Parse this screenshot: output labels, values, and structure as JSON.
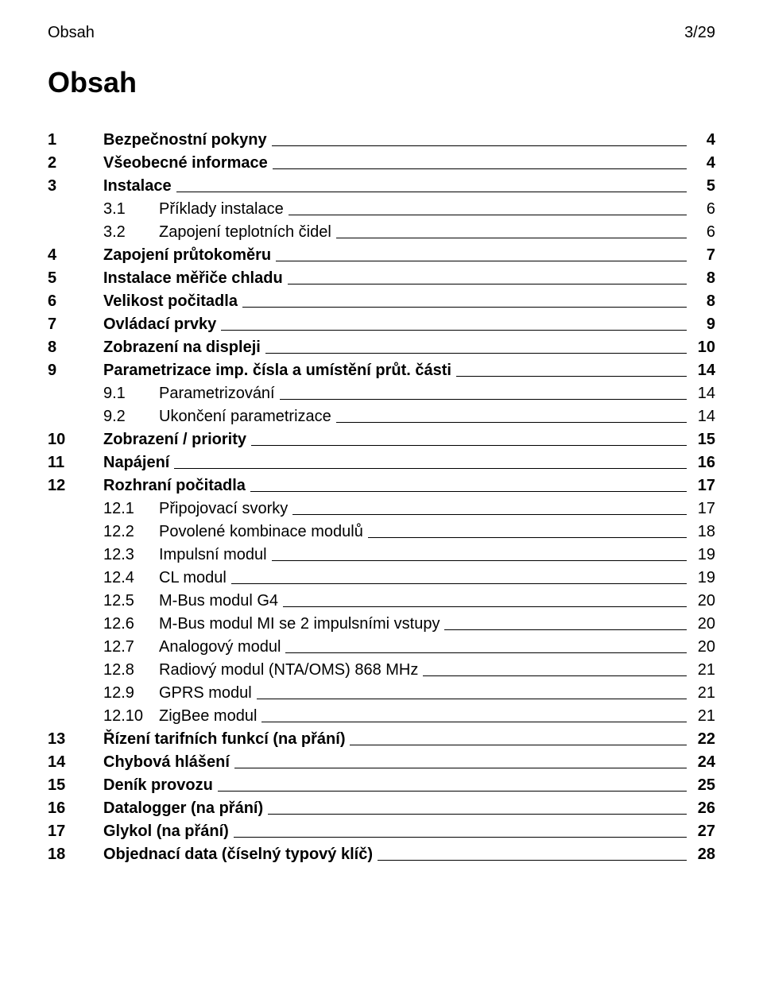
{
  "header": {
    "left": "Obsah",
    "right": "3/29"
  },
  "title": "Obsah",
  "toc": [
    {
      "num": "1",
      "label": "Bezpečnostní pokyny",
      "page": "4",
      "level": 0,
      "bold": true
    },
    {
      "num": "2",
      "label": "Všeobecné informace",
      "page": "4",
      "level": 0,
      "bold": true
    },
    {
      "num": "3",
      "label": "Instalace",
      "page": "5",
      "level": 0,
      "bold": true
    },
    {
      "num": "3.1",
      "label": "Příklady instalace",
      "page": "6",
      "level": 1,
      "bold": false
    },
    {
      "num": "3.2",
      "label": "Zapojení teplotních čidel",
      "page": "6",
      "level": 1,
      "bold": false
    },
    {
      "num": "4",
      "label": "Zapojení průtokoměru",
      "page": "7",
      "level": 0,
      "bold": true
    },
    {
      "num": "5",
      "label": "Instalace měřiče chladu",
      "page": "8",
      "level": 0,
      "bold": true
    },
    {
      "num": "6",
      "label": "Velikost počitadla",
      "page": "8",
      "level": 0,
      "bold": true
    },
    {
      "num": "7",
      "label": "Ovládací prvky",
      "page": "9",
      "level": 0,
      "bold": true
    },
    {
      "num": "8",
      "label": "Zobrazení na displeji",
      "page": "10",
      "level": 0,
      "bold": true
    },
    {
      "num": "9",
      "label": "Parametrizace imp. čísla a umístění průt. části",
      "page": "14",
      "level": 0,
      "bold": true
    },
    {
      "num": "9.1",
      "label": "Parametrizování",
      "page": "14",
      "level": 1,
      "bold": false
    },
    {
      "num": "9.2",
      "label": "Ukončení parametrizace",
      "page": "14",
      "level": 1,
      "bold": false
    },
    {
      "num": "10",
      "label": "Zobrazení / priority",
      "page": "15",
      "level": 0,
      "bold": true
    },
    {
      "num": "11",
      "label": "Napájení",
      "page": "16",
      "level": 0,
      "bold": true
    },
    {
      "num": "12",
      "label": "Rozhraní počitadla",
      "page": "17",
      "level": 0,
      "bold": true
    },
    {
      "num": "12.1",
      "label": "Připojovací svorky",
      "page": "17",
      "level": 1,
      "bold": false
    },
    {
      "num": "12.2",
      "label": "Povolené kombinace modulů",
      "page": "18",
      "level": 1,
      "bold": false
    },
    {
      "num": "12.3",
      "label": "Impulsní modul",
      "page": "19",
      "level": 1,
      "bold": false
    },
    {
      "num": "12.4",
      "label": "CL modul",
      "page": "19",
      "level": 1,
      "bold": false
    },
    {
      "num": "12.5",
      "label": "M-Bus modul G4",
      "page": "20",
      "level": 1,
      "bold": false
    },
    {
      "num": "12.6",
      "label": "M-Bus modul MI se 2 impulsními vstupy",
      "page": "20",
      "level": 1,
      "bold": false
    },
    {
      "num": "12.7",
      "label": "Analogový modul",
      "page": "20",
      "level": 1,
      "bold": false
    },
    {
      "num": "12.8",
      "label": "Radiový modul (NTA/OMS) 868 MHz",
      "page": "21",
      "level": 1,
      "bold": false
    },
    {
      "num": "12.9",
      "label": "GPRS modul",
      "page": "21",
      "level": 1,
      "bold": false
    },
    {
      "num": "12.10",
      "label": "ZigBee modul",
      "page": "21",
      "level": 1,
      "bold": false
    },
    {
      "num": "13",
      "label": "Řízení tarifních funkcí (na přání)",
      "page": "22",
      "level": 0,
      "bold": true
    },
    {
      "num": "14",
      "label": "Chybová hlášení",
      "page": "24",
      "level": 0,
      "bold": true
    },
    {
      "num": "15",
      "label": "Deník provozu",
      "page": "25",
      "level": 0,
      "bold": true
    },
    {
      "num": "16",
      "label": "Datalogger (na přání)",
      "page": "26",
      "level": 0,
      "bold": true
    },
    {
      "num": "17",
      "label": "Glykol (na přání)",
      "page": "27",
      "level": 0,
      "bold": true
    },
    {
      "num": "18",
      "label": "Objednací data (číselný typový klíč)",
      "page": "28",
      "level": 0,
      "bold": true
    }
  ]
}
